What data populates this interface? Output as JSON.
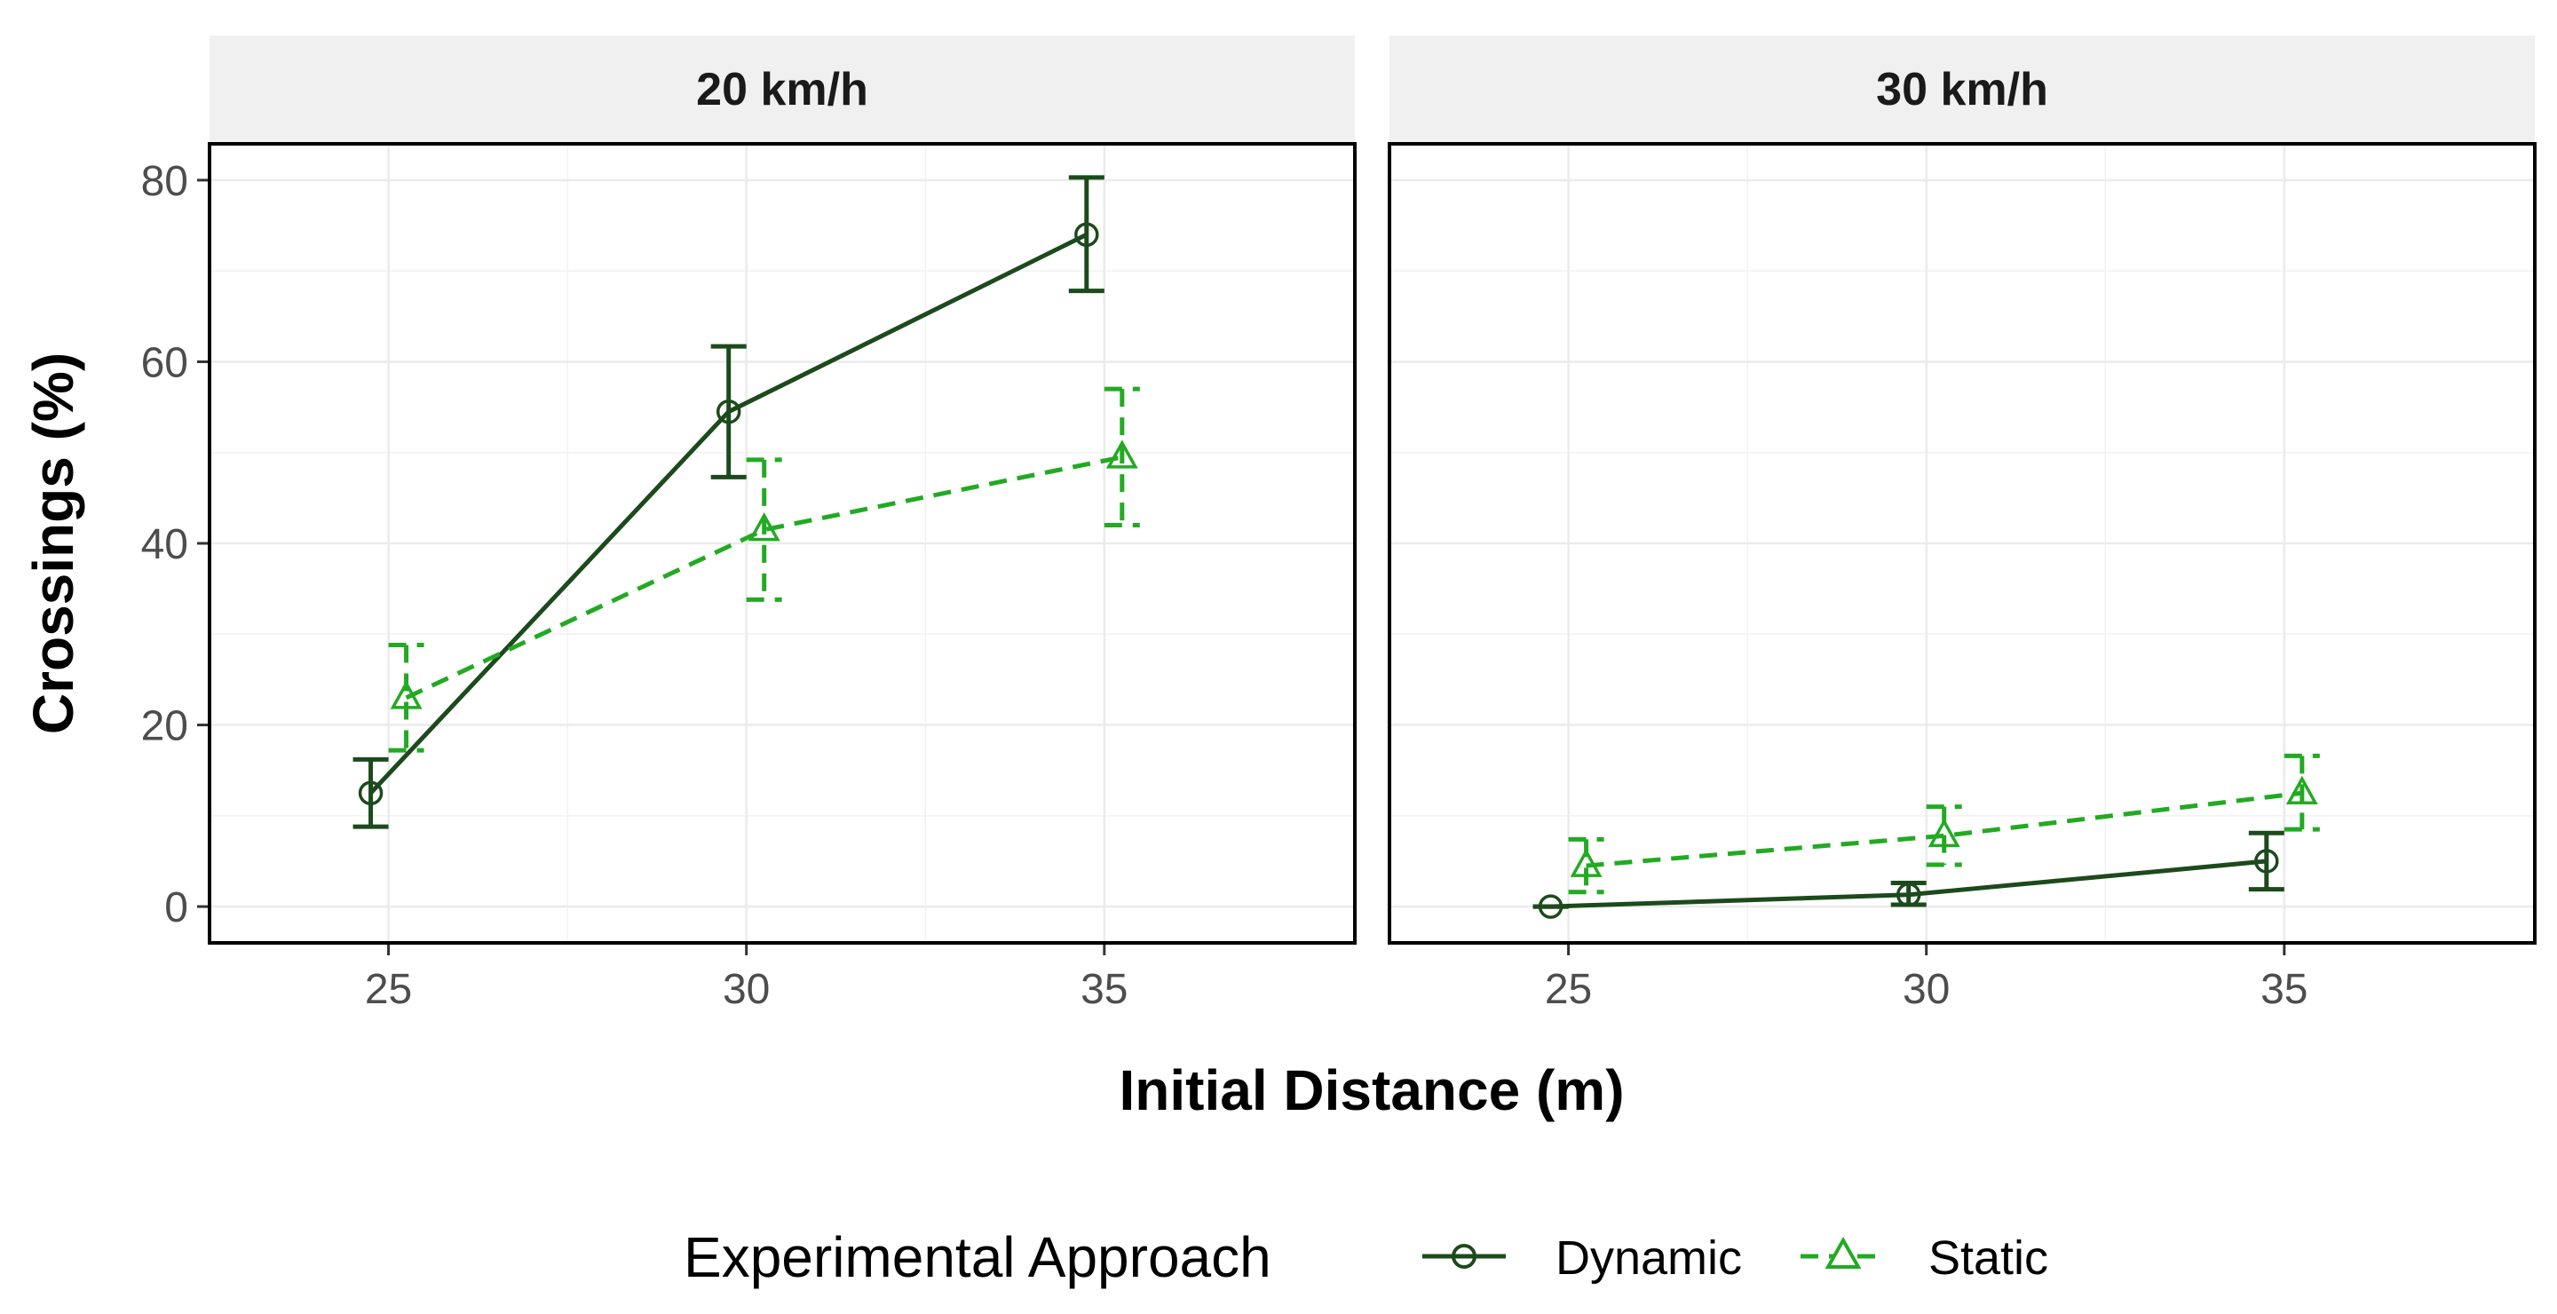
{
  "chart_data": {
    "type": "line",
    "ylabel": "Crossings (%)",
    "xlabel": "Initial Distance (m)",
    "xlim": [
      22.5,
      38.5
    ],
    "ylim": [
      -4,
      84
    ],
    "x_ticks": [
      25,
      30,
      35
    ],
    "y_ticks": [
      0,
      20,
      40,
      60,
      80
    ],
    "grid": true,
    "legend": {
      "title": "Experimental Approach",
      "position": "bottom",
      "entries": [
        "Dynamic",
        "Static"
      ]
    },
    "colors": {
      "Dynamic": "#1c4a1c",
      "Static": "#22aa22"
    },
    "panels": [
      {
        "title": "20 km/h",
        "series": [
          {
            "name": "Dynamic",
            "x": [
              25,
              30,
              35
            ],
            "y": [
              12.5,
              54.5,
              74.0
            ],
            "ymin": [
              8.8,
              47.3,
              67.8
            ],
            "ymax": [
              16.2,
              61.7,
              80.3
            ]
          },
          {
            "name": "Static",
            "x": [
              25,
              30,
              35
            ],
            "y": [
              23.0,
              41.5,
              49.5
            ],
            "ymin": [
              17.2,
              33.8,
              42.0
            ],
            "ymax": [
              28.8,
              49.2,
              57.0
            ]
          }
        ]
      },
      {
        "title": "30 km/h",
        "series": [
          {
            "name": "Dynamic",
            "x": [
              25,
              30,
              35
            ],
            "y": [
              0.0,
              1.3,
              5.0
            ],
            "ymin": [
              0.0,
              0.2,
              1.9
            ],
            "ymax": [
              0.0,
              2.6,
              8.1
            ]
          },
          {
            "name": "Static",
            "x": [
              25,
              30,
              35
            ],
            "y": [
              4.5,
              7.8,
              12.5
            ],
            "ymin": [
              1.6,
              4.6,
              8.5
            ],
            "ymax": [
              7.4,
              11.0,
              16.6
            ]
          }
        ]
      }
    ]
  }
}
